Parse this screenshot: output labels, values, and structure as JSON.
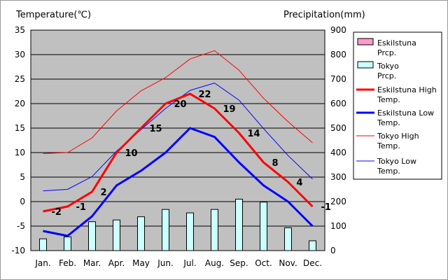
{
  "chart_data": {
    "type": "line",
    "categories": [
      "Jan.",
      "Feb.",
      "Mar.",
      "Apr.",
      "May",
      "Jun.",
      "Jul.",
      "Aug.",
      "Sep.",
      "Oct.",
      "Nov.",
      "Dec."
    ],
    "y_left": {
      "label": "Temperature(℃)",
      "range": [
        -10,
        35
      ],
      "ticks": [
        -10,
        -5,
        0,
        5,
        10,
        15,
        20,
        25,
        30,
        35
      ]
    },
    "y_right": {
      "label": "Precipitation(mm)",
      "range": [
        0,
        900
      ],
      "ticks": [
        0,
        100,
        200,
        300,
        400,
        500,
        600,
        700,
        800,
        900
      ]
    },
    "grid": true,
    "legend_position": "right",
    "bars": [
      {
        "name": "Eskilstuna Prcp.",
        "values": [
          null,
          null,
          null,
          null,
          null,
          null,
          null,
          null,
          null,
          null,
          null,
          null
        ],
        "color": "#ff99cc"
      },
      {
        "name": "Tokyo Prcp.",
        "values": [
          48,
          56,
          118,
          125,
          138,
          168,
          154,
          168,
          210,
          198,
          93,
          40
        ],
        "color": "#ccffff"
      }
    ],
    "series": [
      {
        "name": "Eskilstuna High Temp.",
        "values": [
          -2,
          -1,
          2,
          10,
          15,
          20,
          22,
          19,
          14,
          8,
          4,
          -1
        ],
        "color": "#ff0000",
        "width": 3
      },
      {
        "name": "Eskilstuna Low Temp.",
        "values": [
          -6,
          -7,
          -3,
          3.3,
          6.3,
          10,
          15,
          13.2,
          8,
          3.3,
          0,
          -5
        ],
        "color": "#0000ff",
        "width": 3
      },
      {
        "name": "Tokyo High Temp.",
        "values": [
          9.8,
          10,
          13,
          18.5,
          22.6,
          25.3,
          29.1,
          30.8,
          26.8,
          21.1,
          16.3,
          12
        ],
        "color": "#ff0000",
        "width": 1
      },
      {
        "name": "Tokyo Low Temp.",
        "values": [
          2.2,
          2.5,
          5.1,
          10.3,
          14.7,
          19,
          22.7,
          24.2,
          20.7,
          14.9,
          9.4,
          4.6
        ],
        "color": "#0000ff",
        "width": 1
      }
    ],
    "data_labels": [
      "-2",
      "-1",
      "2",
      "10",
      "15",
      "20",
      "22",
      "19",
      "14",
      "8",
      "4",
      "-1"
    ]
  }
}
